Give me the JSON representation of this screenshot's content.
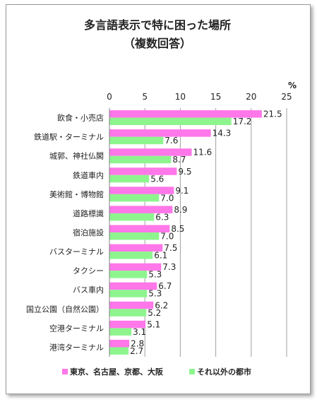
{
  "chart_data": {
    "type": "bar",
    "orientation": "horizontal",
    "title": "多言語表示で特に困った場所",
    "subtitle": "（複数回答）",
    "unit_label": "%",
    "xlim": [
      0,
      25
    ],
    "ticks": [
      0,
      5,
      10,
      15,
      20,
      25
    ],
    "grid": true,
    "legend_position": "bottom",
    "categories": [
      "飲食・小売店",
      "鉄道駅・ターミナル",
      "城郭、神社仏閣",
      "鉄道車内",
      "美術館・博物館",
      "道路標識",
      "宿泊施設",
      "バスターミナル",
      "タクシー",
      "バス車内",
      "国立公園（自然公園）",
      "空港ターミナル",
      "港湾ターミナル"
    ],
    "series": [
      {
        "name": "東京、名古屋、京都、大阪",
        "color": "#ff77e9",
        "values": [
          21.5,
          14.3,
          11.6,
          9.5,
          9.1,
          8.9,
          8.5,
          7.5,
          7.3,
          6.7,
          6.2,
          5.1,
          2.8
        ]
      },
      {
        "name": "それ以外の都市",
        "color": "#8ef58e",
        "values": [
          17.2,
          7.6,
          8.7,
          5.6,
          7.0,
          6.3,
          7.0,
          6.1,
          5.3,
          5.3,
          5.2,
          3.1,
          2.7
        ]
      }
    ]
  }
}
